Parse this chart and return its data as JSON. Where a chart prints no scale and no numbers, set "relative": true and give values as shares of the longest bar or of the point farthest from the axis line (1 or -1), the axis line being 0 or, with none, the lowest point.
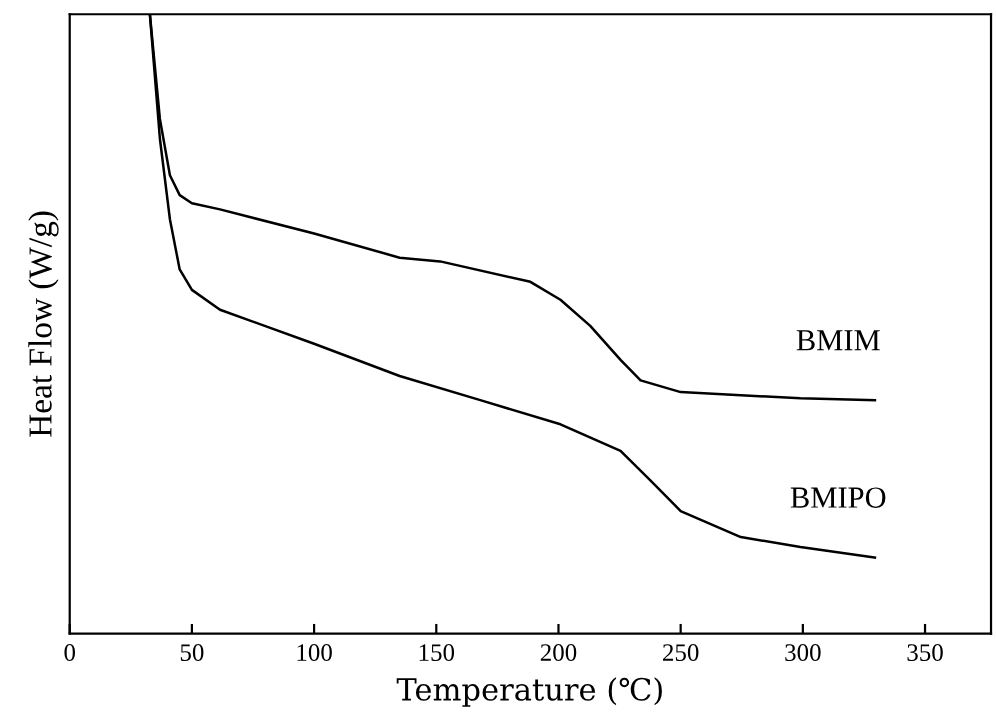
{
  "chart_data": {
    "type": "line",
    "xlabel": "Temperature (℃)",
    "ylabel": "Heat Flow (W/g)",
    "relative": true,
    "xlim": [
      0,
      377
    ],
    "xticks": [
      0,
      50,
      100,
      150,
      200,
      250,
      300,
      350
    ],
    "tick_labels": "x",
    "legend": false,
    "grid": false,
    "marker": "none",
    "line_style": "solid",
    "series": [
      {
        "name": "BMIM",
        "color": "#000000",
        "x": [
          32.8,
          36.9,
          41,
          45,
          50,
          61.5,
          100,
          135,
          151.6,
          188.5,
          200.8,
          213,
          225.4,
          233.6,
          250,
          299,
          329.5
        ],
        "values": [
          1.0,
          0.831,
          0.74,
          0.708,
          0.695,
          0.685,
          0.646,
          0.607,
          0.601,
          0.568,
          0.539,
          0.497,
          0.442,
          0.409,
          0.39,
          0.38,
          0.377
        ]
      },
      {
        "name": "BMIPO",
        "color": "#000000",
        "x": [
          32.8,
          36.9,
          41,
          45,
          50,
          61.5,
          100,
          135,
          168,
          200.8,
          225.4,
          237.7,
          250,
          274.6,
          299,
          329.5
        ],
        "values": [
          1.0,
          0.799,
          0.669,
          0.588,
          0.555,
          0.523,
          0.468,
          0.416,
          0.377,
          0.338,
          0.295,
          0.247,
          0.198,
          0.156,
          0.14,
          0.123
        ]
      }
    ]
  }
}
